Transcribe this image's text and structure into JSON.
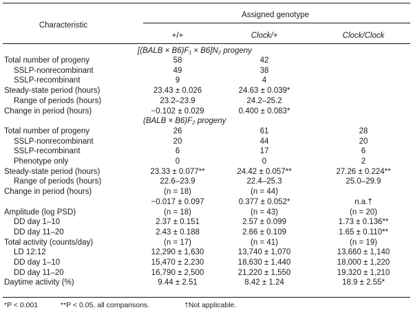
{
  "header": {
    "characteristic": "Characteristic",
    "assigned": "Assigned genotype",
    "col1": "+/+",
    "col2": "Clock/+",
    "col3": "Clock/Clock"
  },
  "section_n2": "[(BALB × B6)F₁ × B6]N₂ progeny",
  "section_f2": "(BALB × B6)F₂ progeny",
  "rows": [
    {
      "label": "Total number of progeny",
      "indent": false,
      "v": [
        "58",
        "42",
        ""
      ]
    },
    {
      "label": "SSLP-nonrecombinant",
      "indent": true,
      "v": [
        "49",
        "38",
        ""
      ]
    },
    {
      "label": "SSLP-recombinant",
      "indent": true,
      "v": [
        "9",
        "4",
        ""
      ]
    },
    {
      "label": "Steady-state period (hours)",
      "indent": false,
      "v": [
        "23.43 ± 0.026",
        "24.63 ± 0.039*",
        ""
      ]
    },
    {
      "label": "Range of periods (hours)",
      "indent": true,
      "v": [
        "23.2–23.9",
        "24.2–25.2",
        ""
      ]
    },
    {
      "label": "Change in period (hours)",
      "indent": false,
      "v": [
        "−0.102 ± 0.029",
        "0.400 ± 0.083*",
        ""
      ]
    },
    {
      "section": "f2"
    },
    {
      "label": "Total number of progeny",
      "indent": false,
      "v": [
        "26",
        "61",
        "28"
      ]
    },
    {
      "label": "SSLP-nonrecombinant",
      "indent": true,
      "v": [
        "20",
        "44",
        "20"
      ]
    },
    {
      "label": "SSLP-recombinant",
      "indent": true,
      "v": [
        "6",
        "17",
        "6"
      ]
    },
    {
      "label": "Phenotype only",
      "indent": true,
      "v": [
        "0",
        "0",
        "2"
      ]
    },
    {
      "label": "Steady-state period (hours)",
      "indent": false,
      "v": [
        "23.33 ± 0.077**",
        "24.42 ± 0.057**",
        "27.26 ± 0.224**"
      ]
    },
    {
      "label": "Range of periods (hours)",
      "indent": true,
      "v": [
        "22.6–23.9",
        "22.4–25.3",
        "25.0–29.9"
      ]
    },
    {
      "label": "Change in period (hours)",
      "indent": false,
      "v": [
        "(n = 18)",
        "(n = 44)",
        ""
      ]
    },
    {
      "label": "",
      "indent": false,
      "v": [
        "−0.017 ± 0.097",
        "0.377 ± 0.052*",
        "n.a.†"
      ]
    },
    {
      "label": "Amplitude (log PSD)",
      "indent": false,
      "v": [
        "(n = 18)",
        "(n = 43)",
        "(n = 20)"
      ]
    },
    {
      "label": "DD day 1–10",
      "indent": true,
      "v": [
        "2.37 ± 0.151",
        "2.57 ± 0.099",
        "1.73 ± 0.136**"
      ]
    },
    {
      "label": "DD day 11–20",
      "indent": true,
      "v": [
        "2.43 ± 0.188",
        "2.66 ± 0.109",
        "1.65 ± 0.110**"
      ]
    },
    {
      "label": "Total activity (counts/day)",
      "indent": false,
      "v": [
        "(n = 17)",
        "(n = 41)",
        "(n = 19)"
      ]
    },
    {
      "label": "LD 12:12",
      "indent": true,
      "v": [
        "12,290 ± 1,630",
        "13,740 ± 1,070",
        "13,660 ± 1,140"
      ]
    },
    {
      "label": "DD day 1–10",
      "indent": true,
      "v": [
        "15,470 ± 2,230",
        "18,630 ± 1,440",
        "18,000 ± 1,220"
      ]
    },
    {
      "label": "DD day 11–20",
      "indent": true,
      "v": [
        "16,790 ± 2,500",
        "21,220 ± 1,550",
        "19,320 ± 1,210"
      ]
    },
    {
      "label": "Daytime activity (%)",
      "indent": false,
      "v": [
        "9.44 ± 2.51",
        "8.42 ± 1.24",
        "18.9 ± 2.55*"
      ]
    }
  ],
  "footnotes": {
    "f1": "*P < 0.001",
    "f2": "**P < 0.05, all comparisons.",
    "f3": "†Not applicable."
  }
}
